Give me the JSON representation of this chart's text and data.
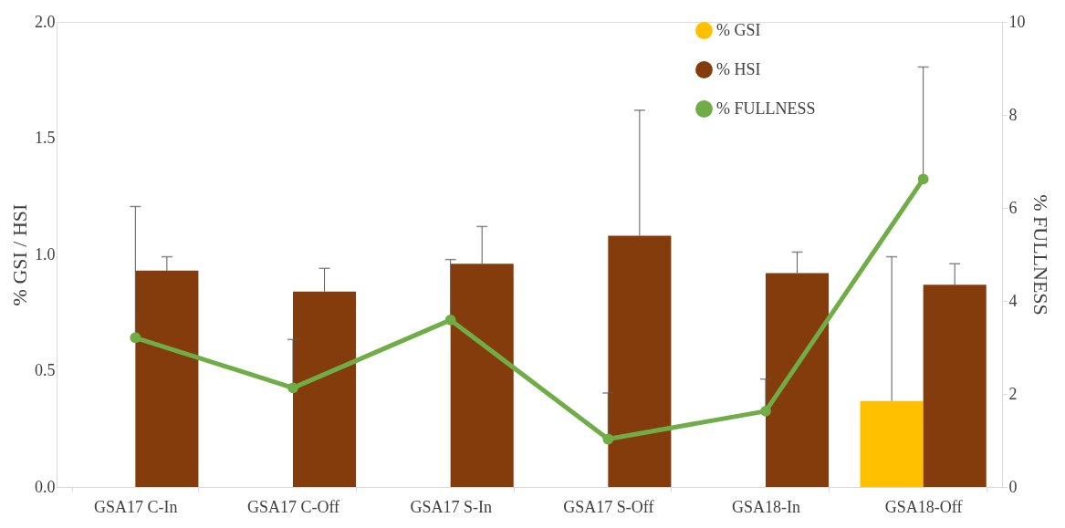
{
  "chart_data": {
    "type": "bar",
    "ylabel": "% GSI / HSI",
    "y2label": "% FULLNESS",
    "categories": [
      "GSA17 C-In",
      "GSA17 C-Off",
      "GSA17 S-In",
      "GSA17 S-Off",
      "GSA18-In",
      "GSA18-Off"
    ],
    "series": [
      {
        "name": "% GSI",
        "color": "#ffc000",
        "values": [
          null,
          null,
          null,
          null,
          null,
          0.37
        ],
        "errors": [
          null,
          null,
          null,
          null,
          null,
          [
            0.37,
            0.99
          ]
        ]
      },
      {
        "name": " % HSI",
        "color": "#843c0c",
        "values": [
          0.93,
          0.84,
          0.96,
          1.08,
          0.92,
          0.87
        ],
        "errors": [
          [
            0.93,
            0.99
          ],
          [
            0.84,
            0.94
          ],
          [
            0.96,
            1.12
          ],
          [
            1.08,
            1.62
          ],
          [
            0.92,
            1.01
          ],
          [
            0.87,
            0.96
          ]
        ]
      },
      {
        "name": "% FULLNESS",
        "type": "line",
        "axis": "y2",
        "color": "#70ad47",
        "marker": "circle",
        "values": [
          3.21,
          2.13,
          3.59,
          1.03,
          1.63,
          6.62
        ],
        "errors": [
          [
            3.21,
            6.03
          ],
          [
            2.13,
            3.17
          ],
          [
            3.59,
            4.89
          ],
          [
            1.03,
            2.02
          ],
          [
            1.63,
            2.32
          ],
          [
            6.62,
            9.03
          ]
        ]
      }
    ],
    "ylim": [
      0,
      2
    ],
    "yticks": [
      {
        "value": 0,
        "label": "0.0"
      },
      0.5,
      {
        "value": 1,
        "label": "1.0"
      },
      1.5,
      {
        "value": 2,
        "label": "2.0"
      }
    ],
    "y2lim": [
      0,
      10
    ],
    "y2ticks": [
      0,
      2,
      4,
      6,
      8,
      10
    ],
    "legend": "top right",
    "grid": false
  }
}
